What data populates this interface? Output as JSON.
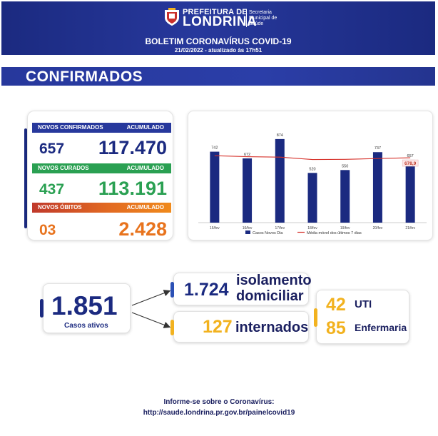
{
  "header": {
    "logo_line1": "PREFEITURA DE",
    "logo_line2": "LONDRINA",
    "logo_secretaria": [
      "Secretaria",
      "Municipal de",
      "Saúde"
    ],
    "title": "BOLETIM CORONAVÍRUS COVID-19",
    "date": "21/02/2022 - atualizado às 17h51"
  },
  "section_title": "CONFIRMADOS",
  "stats": {
    "confirmados": {
      "label": "NOVOS CONFIRMADOS",
      "acc_label": "ACUMULADO",
      "novos": "657",
      "acumulado": "117.470"
    },
    "curados": {
      "label": "NOVOS CURADOS",
      "acc_label": "ACUMULADO",
      "novos": "437",
      "acumulado": "113.191"
    },
    "obitos": {
      "label": "NOVOS ÓBITOS",
      "acc_label": "ACUMULADO",
      "novos": "03",
      "acumulado": "2.428"
    }
  },
  "chart_data": {
    "type": "bar",
    "categories": [
      "15/fev",
      "16/fev",
      "17/fev",
      "18/fev",
      "19/fev",
      "20/fev",
      "21/fev"
    ],
    "series": [
      {
        "name": "Casos Novos Dia",
        "type": "bar",
        "values": [
          742,
          672,
          874,
          520,
          550,
          737,
          657
        ],
        "color": "#1b2a80"
      },
      {
        "name": "Média móvel dos últimos 7 dias",
        "type": "line",
        "values": [
          700,
          690,
          685,
          660,
          662,
          670,
          678.9
        ],
        "color": "#d6322b"
      }
    ],
    "bar_labels": [
      "742",
      "672",
      "874",
      "520",
      "550",
      "737",
      "657"
    ],
    "line_last_label": "678,9",
    "ylim": [
      0,
      1000
    ],
    "grid": false,
    "legend": "bottom"
  },
  "ativos": {
    "total": "1.851",
    "label": "Casos ativos"
  },
  "isolamento": {
    "value": "1.724",
    "label_line1": "isolamento",
    "label_line2": "domiciliar"
  },
  "internados": {
    "value": "127",
    "label": "internados"
  },
  "leitos": {
    "uti": {
      "value": "42",
      "label": "UTI"
    },
    "enfermaria": {
      "value": "85",
      "label": "Enfermaria"
    }
  },
  "footer": {
    "line1": "Informe-se sobre o Coronavírus:",
    "line2": "http://saude.londrina.pr.gov.br/painelcovid19"
  },
  "colors": {
    "navy": "#1b2a80",
    "green": "#2aa052",
    "orange": "#e8731d",
    "yellow": "#f2b21f",
    "red": "#d6322b"
  }
}
